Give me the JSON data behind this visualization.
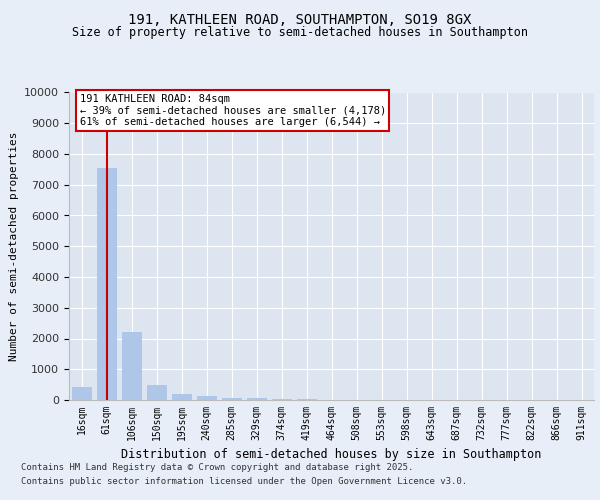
{
  "title": "191, KATHLEEN ROAD, SOUTHAMPTON, SO19 8GX",
  "subtitle": "Size of property relative to semi-detached houses in Southampton",
  "xlabel": "Distribution of semi-detached houses by size in Southampton",
  "ylabel": "Number of semi-detached properties",
  "categories": [
    "16sqm",
    "61sqm",
    "106sqm",
    "150sqm",
    "195sqm",
    "240sqm",
    "285sqm",
    "329sqm",
    "374sqm",
    "419sqm",
    "464sqm",
    "508sqm",
    "553sqm",
    "598sqm",
    "643sqm",
    "687sqm",
    "732sqm",
    "777sqm",
    "822sqm",
    "866sqm",
    "911sqm"
  ],
  "values": [
    430,
    7550,
    2200,
    480,
    200,
    120,
    80,
    50,
    30,
    20,
    15,
    10,
    8,
    6,
    5,
    4,
    3,
    2,
    2,
    1,
    1
  ],
  "bar_color": "#aec6e8",
  "property_line_x": 1.0,
  "annotation_title": "191 KATHLEEN ROAD: 84sqm",
  "annotation_line1": "← 39% of semi-detached houses are smaller (4,178)",
  "annotation_line2": "61% of semi-detached houses are larger (6,544) →",
  "property_line_color": "#cc0000",
  "annotation_box_color": "#cc0000",
  "ylim": [
    0,
    10000
  ],
  "yticks": [
    0,
    1000,
    2000,
    3000,
    4000,
    5000,
    6000,
    7000,
    8000,
    9000,
    10000
  ],
  "footer1": "Contains HM Land Registry data © Crown copyright and database right 2025.",
  "footer2": "Contains public sector information licensed under the Open Government Licence v3.0.",
  "background_color": "#e8eef8",
  "plot_background": "#dde6f0"
}
